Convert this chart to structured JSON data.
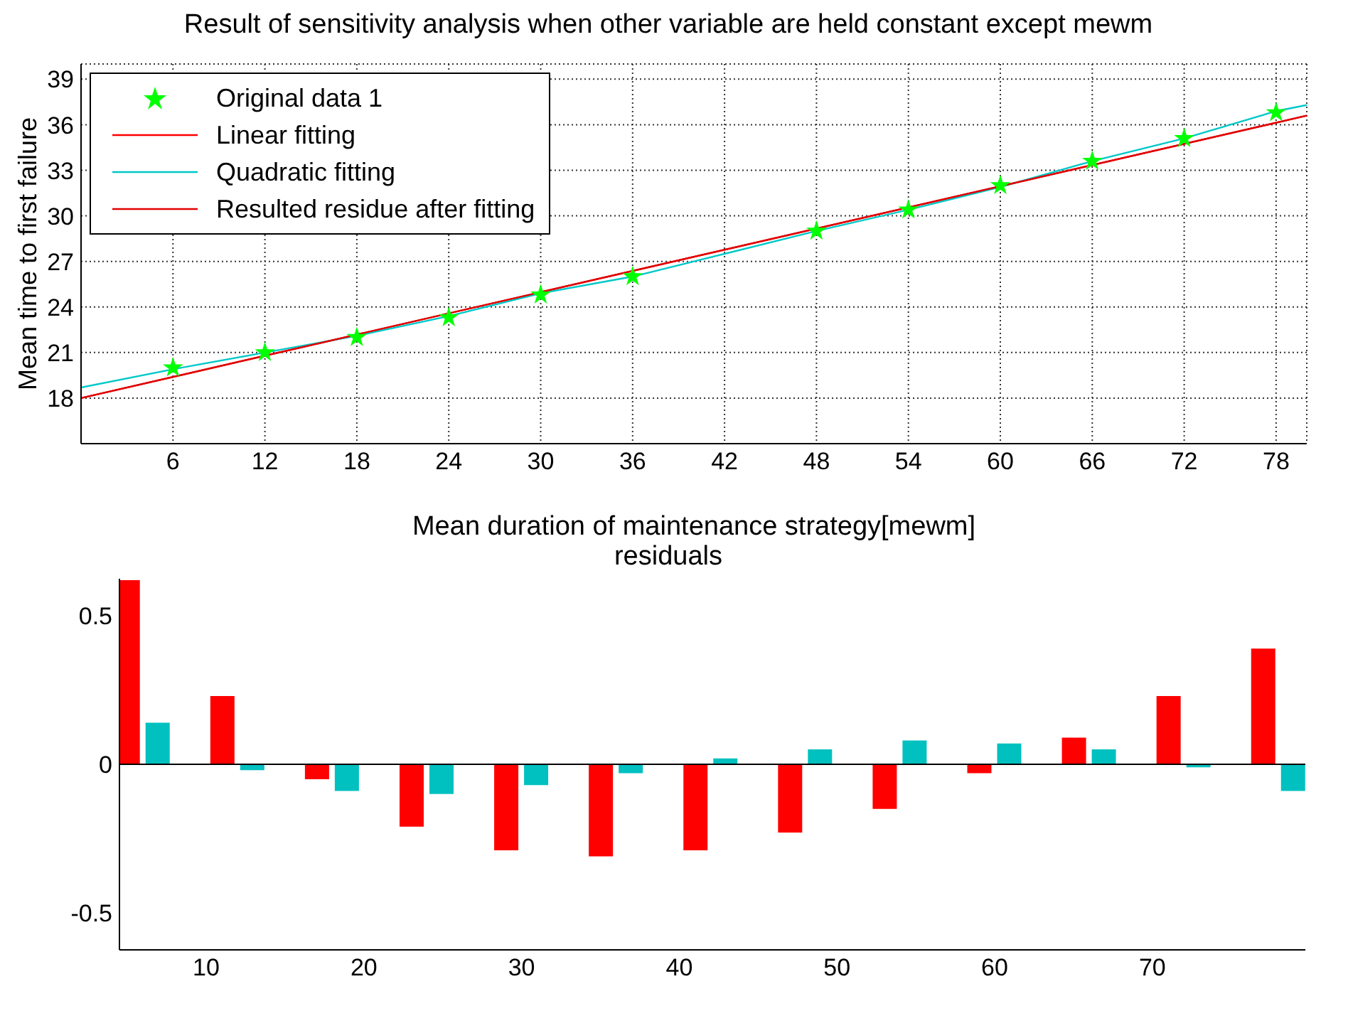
{
  "chart_data": [
    {
      "type": "line",
      "title": "Result of sensitivity analysis when other variable are held constant except mewm",
      "xlabel": "Mean duration of maintenance strategy[mewm]",
      "ylabel": "Mean time to first failure",
      "xlim": [
        0,
        80
      ],
      "xticks": [
        6,
        12,
        18,
        24,
        30,
        36,
        42,
        48,
        54,
        60,
        66,
        72,
        78
      ],
      "ylim": [
        15,
        40
      ],
      "yticks": [
        18,
        21,
        24,
        27,
        30,
        33,
        36,
        39
      ],
      "grid": true,
      "legend": "top left",
      "series": [
        {
          "name": "Original data 1",
          "type": "scatter",
          "marker": "star",
          "color": "#00ff00",
          "x": [
            6,
            12,
            18,
            24,
            30,
            36,
            42,
            48,
            54,
            60,
            66,
            72,
            78
          ],
          "values": [
            20.0,
            21.0,
            22.0,
            23.3,
            24.8,
            26.0,
            null,
            29.0,
            30.4,
            32.0,
            33.6,
            35.1,
            36.8
          ]
        },
        {
          "name": "Linear fitting",
          "type": "line",
          "color": "#ff0000",
          "x": [
            0,
            80
          ],
          "values": [
            18.0,
            36.6
          ]
        },
        {
          "name": "Quadratic fitting",
          "type": "line",
          "color": "#00c8c8",
          "x": [
            0,
            6,
            12,
            18,
            24,
            30,
            36,
            42,
            48,
            54,
            60,
            66,
            72,
            78,
            80
          ],
          "values": [
            18.7,
            19.9,
            21.0,
            22.1,
            23.4,
            24.9,
            26.0,
            27.5,
            29.0,
            30.4,
            31.9,
            33.6,
            35.1,
            36.9,
            37.3
          ]
        },
        {
          "name": "Resulted residue after fitting",
          "type": "line",
          "color": "#e00000",
          "x": [
            0,
            80
          ],
          "values": [
            18.0,
            36.6
          ]
        }
      ]
    },
    {
      "type": "bar",
      "title": "residuals",
      "x": [
        6,
        12,
        18,
        24,
        30,
        36,
        42,
        48,
        54,
        60,
        66,
        72,
        78
      ],
      "xlim": [
        4.5,
        79.7
      ],
      "xticks": [
        10,
        20,
        30,
        40,
        50,
        60,
        70
      ],
      "ylim": [
        -0.625,
        0.625
      ],
      "yticks": [
        -0.5,
        0,
        0.5
      ],
      "ref_lines": [
        {
          "axis": "y",
          "value": 0,
          "color": "#000000"
        }
      ],
      "series": [
        {
          "color": "#ff0000",
          "values": [
            0.62,
            0.23,
            -0.05,
            -0.21,
            -0.29,
            -0.31,
            -0.29,
            -0.23,
            -0.15,
            -0.03,
            0.09,
            0.23,
            0.39
          ]
        },
        {
          "color": "#00c0c0",
          "values": [
            0.14,
            -0.02,
            -0.09,
            -0.1,
            -0.07,
            -0.03,
            0.02,
            0.05,
            0.08,
            0.07,
            0.05,
            -0.01,
            -0.09
          ]
        }
      ]
    }
  ]
}
